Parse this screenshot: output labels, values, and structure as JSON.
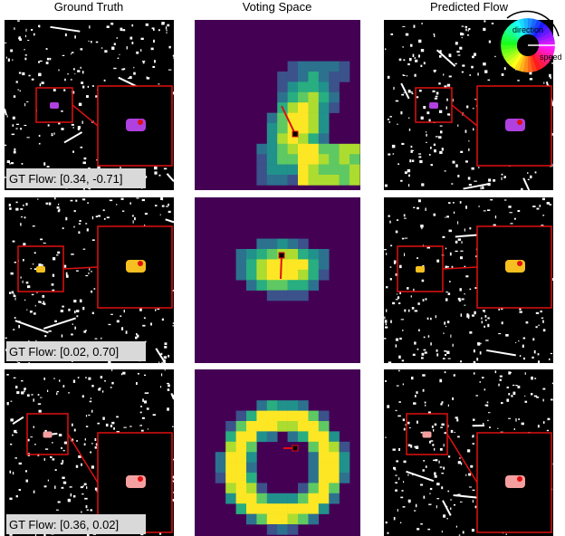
{
  "columns": [
    "Ground Truth",
    "Voting Space",
    "Predicted Flow"
  ],
  "rows": [
    {
      "gt_flow": "GT Flow: [0.34, -0.71]"
    },
    {
      "gt_flow": "GT Flow: [0.02, 0.70]"
    },
    {
      "gt_flow": "GT Flow: [0.36, 0.02]"
    }
  ],
  "legend": {
    "direction": "direction",
    "speed": "speed"
  }
}
